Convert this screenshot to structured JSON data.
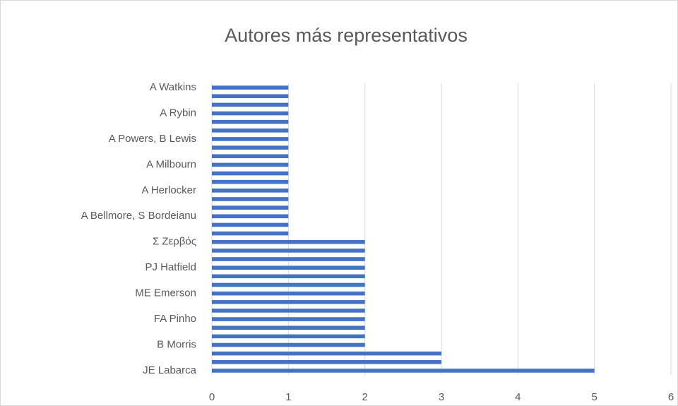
{
  "chart_data": {
    "type": "barh",
    "title": "Autores más representativos",
    "categories": [
      "JE Labarca",
      null,
      null,
      "B Morris",
      null,
      null,
      "FA Pinho",
      null,
      null,
      "ME Emerson",
      null,
      null,
      "PJ Hatfield",
      null,
      null,
      "Σ Ζερβός",
      null,
      null,
      "A Bellmore, S Bordeianu",
      null,
      null,
      "A Herlocker",
      null,
      null,
      "A Milbourn",
      null,
      null,
      "A Powers, B Lewis",
      null,
      null,
      "A Rybin",
      null,
      null,
      "A Watkins"
    ],
    "values": [
      5,
      3,
      3,
      2,
      2,
      2,
      2,
      2,
      2,
      2,
      2,
      2,
      2,
      2,
      2,
      2,
      1,
      1,
      1,
      1,
      1,
      1,
      1,
      1,
      1,
      1,
      1,
      1,
      1,
      1,
      1,
      1,
      1,
      1
    ],
    "color": "#4472c4",
    "xlim": [
      0,
      6
    ],
    "xticks": [
      0,
      1,
      2,
      3,
      4,
      5,
      6
    ],
    "grid": true
  }
}
